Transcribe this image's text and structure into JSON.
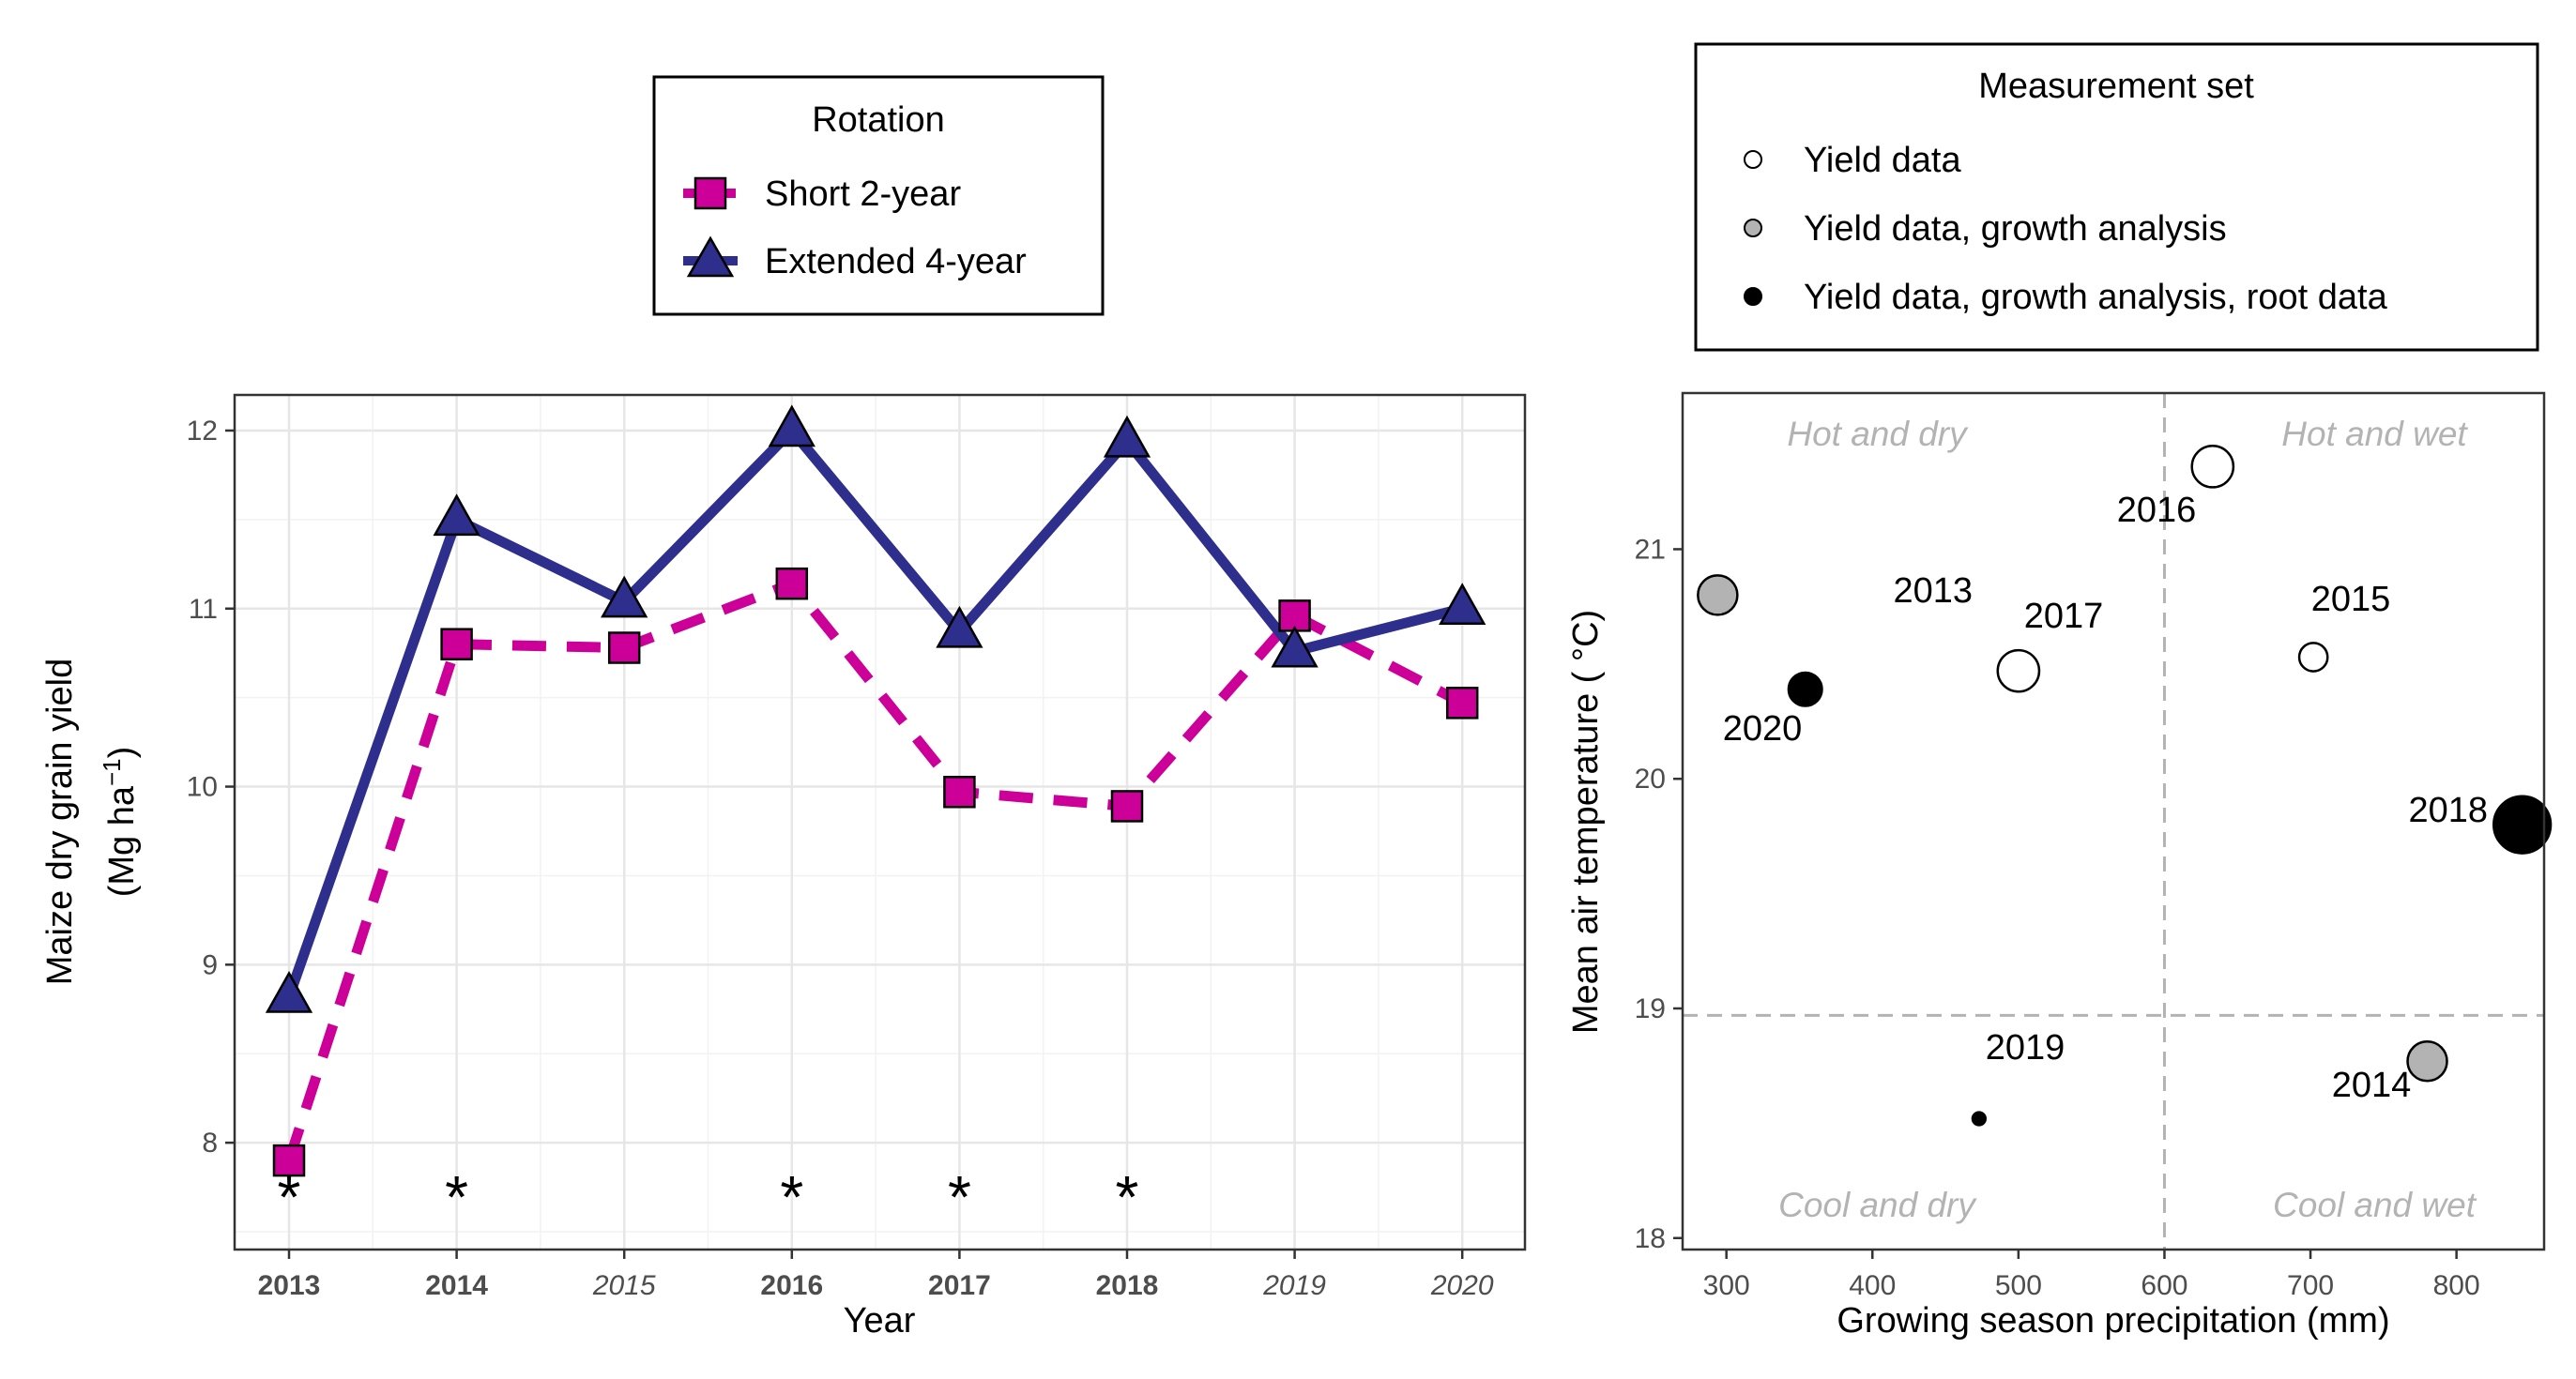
{
  "chart_data": [
    {
      "type": "line",
      "x_axis_label": "Year",
      "y_axis_label_line1": "Maize dry grain yield",
      "y_axis_label_line2": "(Mg  ha",
      "y_axis_label_sup": "−1",
      "y_axis_label_close": ")",
      "ylim": [
        7.4,
        12.2
      ],
      "y_ticks": [
        8,
        9,
        10,
        11,
        12
      ],
      "categories": [
        "2013",
        "2014",
        "2015",
        "2016",
        "2017",
        "2018",
        "2019",
        "2020"
      ],
      "bold_categories": [
        "2013",
        "2014",
        "2016",
        "2017",
        "2018"
      ],
      "significance_marker": "*",
      "significant_years": [
        "2013",
        "2014",
        "2016",
        "2017",
        "2018"
      ],
      "legend": {
        "title": "Rotation",
        "position": "top"
      },
      "series": [
        {
          "name": "Short 2-year",
          "color": "#cc0099",
          "line": "dashed",
          "marker": "square",
          "values": [
            7.9,
            10.8,
            10.78,
            11.14,
            9.97,
            9.89,
            10.96,
            10.47
          ]
        },
        {
          "name": "Extended 4-year",
          "color": "#2e2e8c",
          "line": "solid",
          "marker": "triangle",
          "values": [
            8.82,
            11.5,
            11.04,
            12.0,
            10.87,
            11.94,
            10.76,
            11.0
          ]
        }
      ]
    },
    {
      "type": "scatter",
      "x_axis_label": "Growing season precipitation (mm)",
      "y_axis_label": "Mean air temperature ( °C)",
      "xlim": [
        270,
        860
      ],
      "ylim": [
        17.95,
        21.68
      ],
      "x_ticks": [
        300,
        400,
        500,
        600,
        700,
        800
      ],
      "y_ticks": [
        18,
        19,
        20,
        21
      ],
      "reference_lines": {
        "x": 600,
        "y": 18.97
      },
      "quadrants": {
        "top_left": "Hot and dry",
        "top_right": "Hot and wet",
        "bottom_left": "Cool and dry",
        "bottom_right": "Cool and wet"
      },
      "legend": {
        "title": "Measurement set",
        "position": "top",
        "entries": [
          {
            "name": "Yield data",
            "fill": "#ffffff"
          },
          {
            "name": "Yield data, growth analysis",
            "fill": "#b3b3b3"
          },
          {
            "name": "Yield data, growth analysis, root data",
            "fill": "#000000"
          }
        ]
      },
      "points": [
        {
          "year": "2013",
          "x": 294,
          "y": 20.8,
          "set": 1,
          "size": 1.0
        },
        {
          "year": "2014",
          "x": 780,
          "y": 18.77,
          "set": 1,
          "size": 1.0
        },
        {
          "year": "2015",
          "x": 702,
          "y": 20.53,
          "set": 0,
          "size": 0.72
        },
        {
          "year": "2016",
          "x": 633,
          "y": 21.36,
          "set": 0,
          "size": 1.05
        },
        {
          "year": "2017",
          "x": 500,
          "y": 20.47,
          "set": 0,
          "size": 1.05
        },
        {
          "year": "2018",
          "x": 845,
          "y": 19.8,
          "set": 2,
          "size": 1.45
        },
        {
          "year": "2019",
          "x": 473,
          "y": 18.52,
          "set": 2,
          "size": 0.33
        },
        {
          "year": "2020",
          "x": 354,
          "y": 20.39,
          "set": 2,
          "size": 0.85
        }
      ]
    }
  ]
}
